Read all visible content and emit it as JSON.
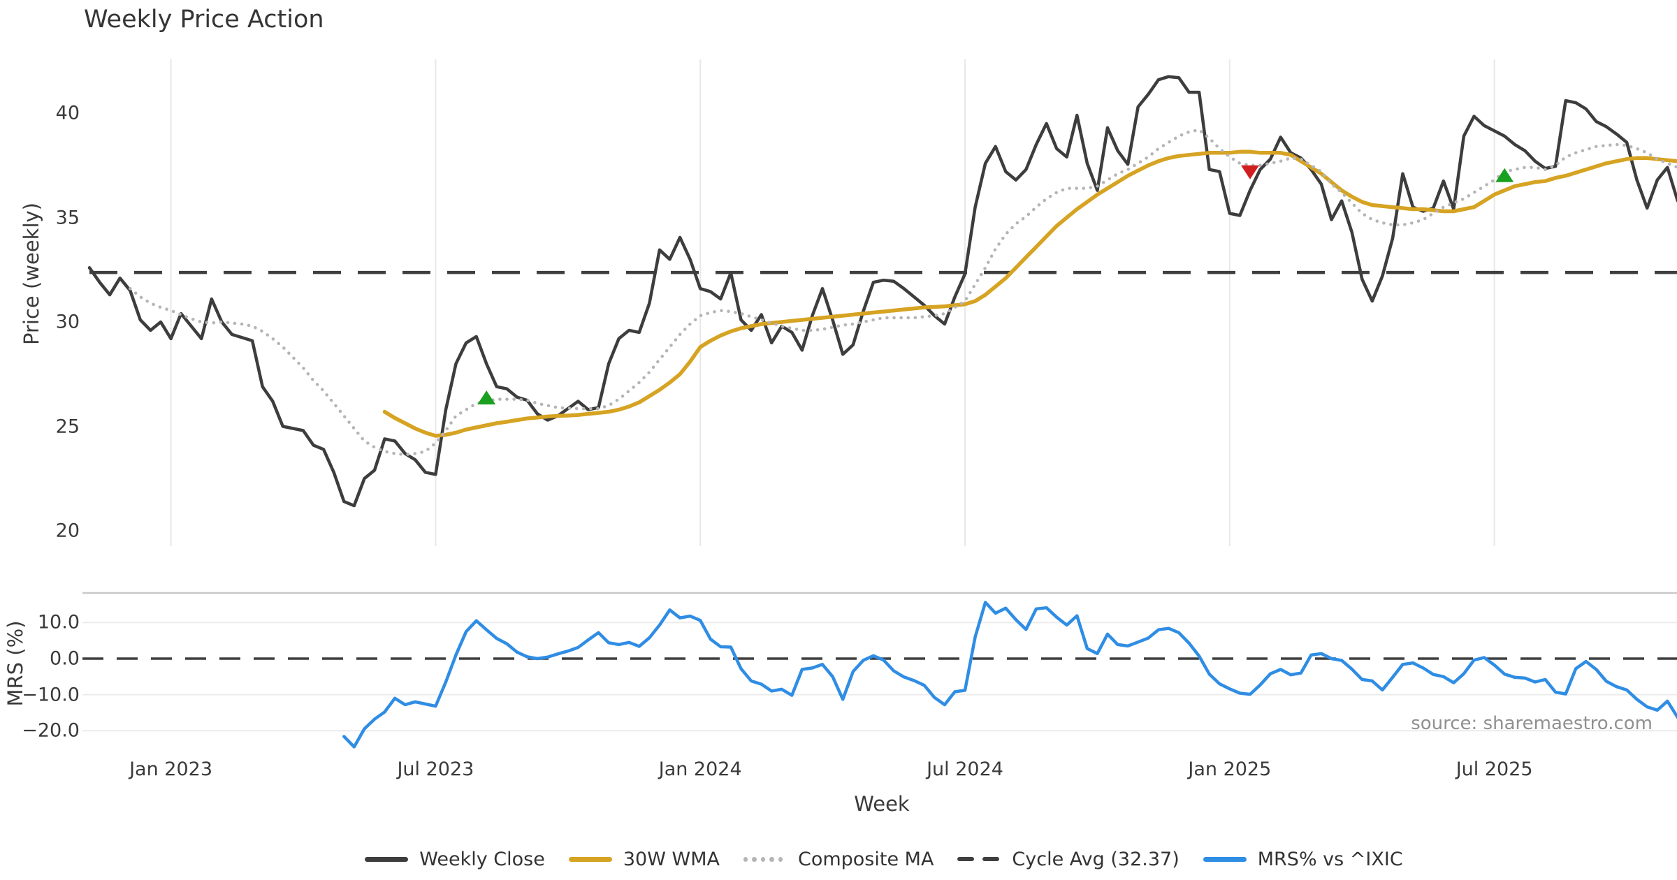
{
  "title": "Weekly Price Action",
  "source_text": "source: sharemaestro.com",
  "colors": {
    "close": "#3d3d3d",
    "wma": "#d6a322",
    "composite": "#b5b5b5",
    "cycle_avg": "#3f3f3f",
    "mrs": "#2f8de4",
    "buy_marker": "#1aa021",
    "sell_marker": "#d01f1f",
    "gridline": "#e8e8e8",
    "mrs_gridline": "#ececec",
    "panel_border": "#c9c9c9",
    "tick_text": "#3a3a3a",
    "source_text": "#909090",
    "background": "#ffffff"
  },
  "chart_data": {
    "type": "line",
    "xlabel": "Week",
    "x_tick_labels": [
      "Jan 2023",
      "Jul 2023",
      "Jan 2024",
      "Jul 2024",
      "Jan 2025",
      "Jul 2025"
    ],
    "x_tick_weeks": [
      8,
      34,
      60,
      86,
      112,
      138
    ],
    "weeks_total": 157,
    "price_panel": {
      "ylabel": "Price (weekly)",
      "yticks": [
        20,
        25,
        30,
        35,
        40
      ],
      "ytick_labels": [
        "20",
        "25",
        "30",
        "35",
        "40"
      ],
      "ylim": [
        19.2,
        42.8
      ],
      "cycle_avg": 32.37,
      "series": [
        {
          "name": "Weekly Close",
          "style": "solid",
          "color_key": "close",
          "values": [
            32.6,
            31.9,
            31.3,
            32.1,
            31.5,
            30.1,
            29.6,
            30.0,
            29.2,
            30.4,
            29.8,
            29.2,
            31.1,
            30.0,
            29.4,
            29.25,
            29.1,
            26.9,
            26.2,
            25.0,
            24.9,
            24.8,
            24.1,
            23.9,
            22.8,
            21.4,
            21.2,
            22.5,
            22.9,
            24.4,
            24.3,
            23.7,
            23.4,
            22.8,
            22.7,
            25.8,
            28.0,
            29.0,
            29.3,
            28.0,
            26.9,
            26.8,
            26.4,
            26.25,
            25.6,
            25.3,
            25.5,
            25.85,
            26.2,
            25.8,
            25.9,
            28.0,
            29.2,
            29.6,
            29.5,
            30.9,
            33.45,
            33.0,
            34.05,
            33.0,
            31.6,
            31.45,
            31.1,
            32.35,
            30.1,
            29.6,
            30.35,
            29.0,
            29.8,
            29.5,
            28.65,
            30.3,
            31.6,
            30.1,
            28.45,
            28.9,
            30.5,
            31.9,
            32.0,
            31.95,
            31.6,
            31.2,
            30.8,
            30.3,
            29.9,
            31.2,
            32.3,
            35.5,
            37.6,
            38.4,
            37.2,
            36.8,
            37.3,
            38.5,
            39.5,
            38.3,
            37.9,
            39.9,
            37.6,
            36.3,
            39.3,
            38.2,
            37.55,
            40.3,
            40.9,
            41.6,
            41.75,
            41.7,
            41.0,
            41.0,
            37.3,
            37.2,
            35.2,
            35.1,
            36.3,
            37.3,
            37.8,
            38.85,
            38.1,
            37.85,
            37.3,
            36.6,
            34.9,
            35.8,
            34.3,
            32.05,
            31.0,
            32.2,
            34.0,
            37.1,
            35.5,
            35.3,
            35.45,
            36.75,
            35.4,
            38.9,
            39.85,
            39.4,
            39.15,
            38.9,
            38.5,
            38.2,
            37.7,
            37.35,
            37.45,
            40.6,
            40.5,
            40.2,
            39.6,
            39.35,
            39.0,
            38.6,
            36.8,
            35.45,
            36.8,
            37.4,
            35.8
          ]
        },
        {
          "name": "30W WMA",
          "style": "solid",
          "color_key": "wma",
          "values": [
            null,
            null,
            null,
            null,
            null,
            null,
            null,
            null,
            null,
            null,
            null,
            null,
            null,
            null,
            null,
            null,
            null,
            null,
            null,
            null,
            null,
            null,
            null,
            null,
            null,
            null,
            null,
            null,
            null,
            25.7,
            25.4,
            25.15,
            24.9,
            24.7,
            24.55,
            24.6,
            24.7,
            24.85,
            24.95,
            25.05,
            25.15,
            25.22,
            25.3,
            25.38,
            25.42,
            25.47,
            25.5,
            25.52,
            25.55,
            25.6,
            25.65,
            25.7,
            25.8,
            25.95,
            26.15,
            26.45,
            26.75,
            27.1,
            27.5,
            28.1,
            28.8,
            29.1,
            29.35,
            29.55,
            29.7,
            29.8,
            29.9,
            29.95,
            30.0,
            30.05,
            30.1,
            30.15,
            30.2,
            30.25,
            30.3,
            30.35,
            30.4,
            30.45,
            30.5,
            30.55,
            30.6,
            30.65,
            30.7,
            30.72,
            30.75,
            30.8,
            30.85,
            31.0,
            31.3,
            31.7,
            32.1,
            32.6,
            33.1,
            33.6,
            34.1,
            34.6,
            35.0,
            35.4,
            35.75,
            36.1,
            36.4,
            36.7,
            37.0,
            37.25,
            37.5,
            37.7,
            37.85,
            37.95,
            38.0,
            38.05,
            38.1,
            38.1,
            38.1,
            38.15,
            38.15,
            38.1,
            38.1,
            38.1,
            38.0,
            37.7,
            37.4,
            37.1,
            36.7,
            36.3,
            36.0,
            35.75,
            35.6,
            35.55,
            35.5,
            35.45,
            35.4,
            35.4,
            35.35,
            35.3,
            35.3,
            35.4,
            35.5,
            35.8,
            36.1,
            36.3,
            36.5,
            36.6,
            36.7,
            36.75,
            36.9,
            37.0,
            37.15,
            37.3,
            37.45,
            37.6,
            37.7,
            37.8,
            37.85,
            37.85,
            37.8,
            37.75,
            37.7
          ]
        },
        {
          "name": "Composite MA",
          "style": "dotted",
          "color_key": "composite",
          "values": [
            null,
            null,
            null,
            null,
            31.6,
            31.2,
            30.9,
            30.7,
            30.55,
            30.35,
            30.15,
            30.0,
            29.95,
            30.0,
            29.95,
            29.9,
            29.8,
            29.55,
            29.2,
            28.8,
            28.3,
            27.8,
            27.2,
            26.7,
            26.1,
            25.5,
            24.9,
            24.3,
            24.0,
            23.8,
            23.7,
            23.65,
            23.7,
            23.8,
            24.2,
            24.8,
            25.5,
            25.8,
            26.1,
            26.2,
            26.3,
            26.3,
            26.3,
            26.25,
            26.1,
            26.0,
            25.9,
            25.87,
            25.85,
            25.85,
            25.85,
            26.0,
            26.3,
            26.7,
            27.1,
            27.6,
            28.2,
            28.8,
            29.4,
            29.9,
            30.3,
            30.45,
            30.55,
            30.5,
            30.4,
            30.25,
            30.1,
            29.95,
            29.8,
            29.7,
            29.6,
            29.6,
            29.65,
            29.75,
            29.85,
            29.9,
            30.0,
            30.1,
            30.2,
            30.2,
            30.2,
            30.2,
            30.25,
            30.3,
            30.4,
            30.7,
            31.0,
            31.8,
            32.6,
            33.5,
            34.2,
            34.7,
            35.05,
            35.5,
            35.9,
            36.2,
            36.4,
            36.4,
            36.4,
            36.5,
            36.8,
            37.1,
            37.3,
            37.6,
            37.9,
            38.3,
            38.6,
            38.9,
            39.1,
            39.2,
            38.8,
            38.3,
            37.9,
            37.6,
            37.5,
            37.5,
            37.6,
            37.7,
            37.85,
            37.8,
            37.5,
            37.2,
            36.6,
            36.2,
            35.7,
            35.2,
            34.9,
            34.75,
            34.65,
            34.65,
            34.75,
            34.9,
            35.2,
            35.5,
            35.7,
            35.9,
            36.2,
            36.5,
            36.8,
            37.2,
            37.3,
            37.4,
            37.4,
            37.3,
            37.5,
            37.9,
            38.1,
            38.25,
            38.4,
            38.45,
            38.5,
            38.45,
            38.3,
            38.1,
            37.8,
            37.6,
            37.4
          ]
        }
      ],
      "buy_markers": [
        {
          "week": 39,
          "price": 26.35
        },
        {
          "week": 139,
          "price": 37.0
        }
      ],
      "sell_markers": [
        {
          "week": 114,
          "price": 37.2
        }
      ]
    },
    "mrs_panel": {
      "ylabel": "MRS (%)",
      "yticks": [
        10,
        0,
        -10,
        -20
      ],
      "ytick_labels": [
        "10.0",
        "0.0",
        "−10.0",
        "−20.0"
      ],
      "ylim": [
        -26,
        18.3
      ],
      "zero_line": 0,
      "series": [
        {
          "name": "MRS% vs ^IXIC",
          "style": "solid",
          "color_key": "mrs",
          "values": [
            null,
            null,
            null,
            null,
            null,
            null,
            null,
            null,
            null,
            null,
            null,
            null,
            null,
            null,
            null,
            null,
            null,
            null,
            null,
            null,
            null,
            null,
            null,
            null,
            null,
            -21.6,
            -24.5,
            -19.5,
            -16.8,
            -14.8,
            -11.0,
            -12.8,
            -12.0,
            -12.6,
            -13.2,
            -6.5,
            1.0,
            7.5,
            10.5,
            8.0,
            5.6,
            4.1,
            1.8,
            0.5,
            0.0,
            0.4,
            1.3,
            2.1,
            3.1,
            5.2,
            7.2,
            4.4,
            3.9,
            4.5,
            3.4,
            5.8,
            9.3,
            13.5,
            11.3,
            11.8,
            10.6,
            5.4,
            3.3,
            3.2,
            -2.8,
            -6.2,
            -7.1,
            -9.0,
            -8.5,
            -10.2,
            -3.0,
            -2.6,
            -1.6,
            -5.0,
            -11.3,
            -3.6,
            -0.5,
            0.8,
            -0.4,
            -3.4,
            -5.1,
            -6.1,
            -7.4,
            -10.8,
            -12.8,
            -9.2,
            -8.8,
            6.0,
            15.6,
            12.6,
            14.0,
            10.8,
            8.1,
            13.8,
            14.1,
            11.5,
            9.3,
            11.9,
            2.8,
            1.4,
            6.8,
            3.9,
            3.5,
            4.6,
            5.7,
            8.0,
            8.4,
            7.2,
            4.3,
            0.7,
            -4.3,
            -7.0,
            -8.4,
            -9.6,
            -9.9,
            -7.3,
            -4.2,
            -3.0,
            -4.5,
            -4.0,
            1.0,
            1.4,
            0.0,
            -0.5,
            -2.9,
            -5.8,
            -6.2,
            -8.7,
            -5.2,
            -1.6,
            -1.2,
            -2.6,
            -4.4,
            -5.0,
            -6.7,
            -4.2,
            -0.4,
            0.3,
            -1.8,
            -4.3,
            -5.2,
            -5.4,
            -6.5,
            -5.8,
            -9.3,
            -9.8,
            -2.8,
            -0.8,
            -3.0,
            -6.3,
            -7.8,
            -8.7,
            -11.3,
            -13.4,
            -14.3,
            -11.8,
            -16.3
          ]
        }
      ]
    },
    "legend": [
      {
        "label": "Weekly Close",
        "style": "solid",
        "color_key": "close"
      },
      {
        "label": "30W WMA",
        "style": "solid",
        "color_key": "wma"
      },
      {
        "label": "Composite MA",
        "style": "dotted",
        "color_key": "composite"
      },
      {
        "label": "Cycle Avg (32.37)",
        "style": "dashed",
        "color_key": "cycle_avg"
      },
      {
        "label": "MRS% vs ^IXIC",
        "style": "solid",
        "color_key": "mrs"
      }
    ]
  }
}
